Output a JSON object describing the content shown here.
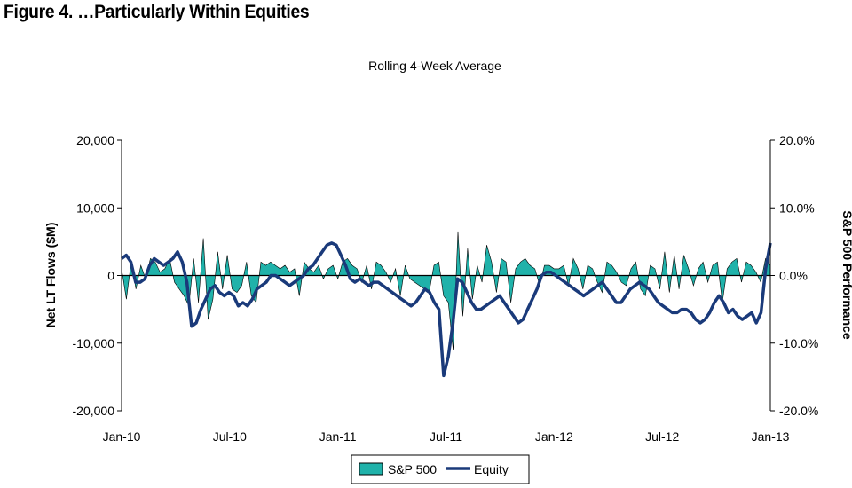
{
  "figure_title": "Figure 4. …Particularly Within Equities",
  "chart_data": {
    "type": "area",
    "subtitle": "Rolling 4-Week Average",
    "ylabel_left": "Net LT Flows ($M)",
    "ylabel_right": "S&P 500 Performance",
    "ylim_left": [
      -20000,
      20000
    ],
    "ylim_right": [
      -0.2,
      0.2
    ],
    "yticks_left": [
      "20,000",
      "10,000",
      "0",
      "-10,000",
      "-20,000"
    ],
    "yticks_right": [
      "20.0%",
      "10.0%",
      "0.0%",
      "-10.0%",
      "-20.0%"
    ],
    "xticks": [
      "Jan-10",
      "Jul-10",
      "Jan-11",
      "Jul-11",
      "Jan-12",
      "Jul-12",
      "Jan-13"
    ],
    "xlim": [
      "Jan-10",
      "Jan-13"
    ],
    "grid": false,
    "legend": {
      "position": "bottom",
      "entries": [
        "S&P 500",
        "Equity"
      ]
    },
    "colors": {
      "sp500_fill": "#20B2AA",
      "sp500_stroke": "#000000",
      "equity": "#1A3A7A"
    },
    "series": [
      {
        "name": "S&P 500",
        "axis": "right",
        "kind": "area",
        "values": [
          0.01,
          -0.035,
          0.02,
          -0.02,
          0.015,
          -0.005,
          0.025,
          0.02,
          0.005,
          0.01,
          0.025,
          -0.01,
          -0.02,
          -0.03,
          -0.045,
          0.025,
          -0.04,
          0.055,
          -0.065,
          -0.035,
          0.035,
          -0.02,
          0.03,
          -0.02,
          -0.025,
          -0.015,
          0.02,
          -0.03,
          -0.04,
          0.02,
          0.015,
          0.02,
          0.015,
          0.01,
          0.015,
          0.005,
          0.01,
          -0.03,
          0.02,
          0.01,
          0.005,
          0.015,
          -0.005,
          0.01,
          0.015,
          -0.005,
          0.02,
          0.025,
          0.015,
          0.01,
          -0.01,
          0.015,
          -0.02,
          0.02,
          0.015,
          0.005,
          -0.01,
          0.01,
          -0.03,
          0.015,
          -0.005,
          -0.01,
          -0.015,
          -0.02,
          -0.025,
          0.015,
          0.02,
          -0.03,
          -0.04,
          -0.11,
          0.065,
          -0.06,
          0.04,
          -0.035,
          0.015,
          -0.01,
          0.045,
          0.02,
          -0.025,
          0.025,
          0.02,
          -0.04,
          0.01,
          0.02,
          0.025,
          0.015,
          0.01,
          -0.015,
          0.015,
          0.015,
          0.01,
          0.01,
          0.015,
          -0.015,
          0.025,
          0.01,
          -0.02,
          0.015,
          0.01,
          -0.01,
          -0.025,
          0.02,
          0.015,
          0.005,
          -0.01,
          -0.015,
          0.01,
          0.02,
          -0.02,
          -0.03,
          0.015,
          0.01,
          -0.02,
          0.035,
          -0.025,
          0.03,
          -0.02,
          0.03,
          0.01,
          -0.015,
          0.01,
          0.02,
          -0.01,
          0.015,
          0.02,
          -0.04,
          0.01,
          0.02,
          0.025,
          -0.01,
          0.02,
          0.015,
          0.005,
          -0.01,
          0.025,
          0.015
        ]
      },
      {
        "name": "Equity",
        "axis": "left",
        "kind": "line",
        "values": [
          2500,
          3000,
          2000,
          -1000,
          -1000,
          -500,
          1500,
          2500,
          2000,
          1500,
          2000,
          2500,
          3500,
          2000,
          -1000,
          -7500,
          -7000,
          -5000,
          -3500,
          -2000,
          -1500,
          -2500,
          -3000,
          -2500,
          -3000,
          -4500,
          -4000,
          -4500,
          -3500,
          -2000,
          -1500,
          -1000,
          0,
          0,
          -500,
          -1000,
          -1500,
          -1000,
          -500,
          0,
          1000,
          1500,
          2500,
          3500,
          4500,
          4800,
          4500,
          3000,
          1500,
          -500,
          -1000,
          -500,
          -1000,
          -1500,
          -1000,
          -1000,
          -1500,
          -2000,
          -2500,
          -3000,
          -3500,
          -4000,
          -4500,
          -4000,
          -3000,
          -2000,
          -2500,
          -4000,
          -5000,
          -14800,
          -12000,
          -7000,
          -500,
          -1000,
          -2500,
          -4000,
          -5000,
          -5000,
          -4500,
          -4000,
          -3500,
          -3000,
          -4000,
          -5000,
          -6000,
          -7000,
          -6500,
          -5000,
          -3500,
          -2000,
          0,
          500,
          500,
          0,
          -500,
          -1000,
          -1500,
          -2000,
          -2500,
          -3000,
          -2500,
          -2000,
          -1500,
          -1000,
          -2000,
          -3000,
          -4000,
          -4000,
          -3000,
          -2000,
          -1500,
          -1000,
          -1500,
          -2000,
          -3000,
          -4000,
          -4500,
          -5000,
          -5500,
          -5500,
          -5000,
          -5000,
          -5500,
          -6500,
          -7000,
          -6500,
          -5500,
          -4000,
          -3000,
          -4000,
          -5500,
          -5000,
          -6000,
          -6500,
          -6000,
          -5500,
          -7000,
          -5500,
          1000,
          4800
        ]
      }
    ]
  }
}
